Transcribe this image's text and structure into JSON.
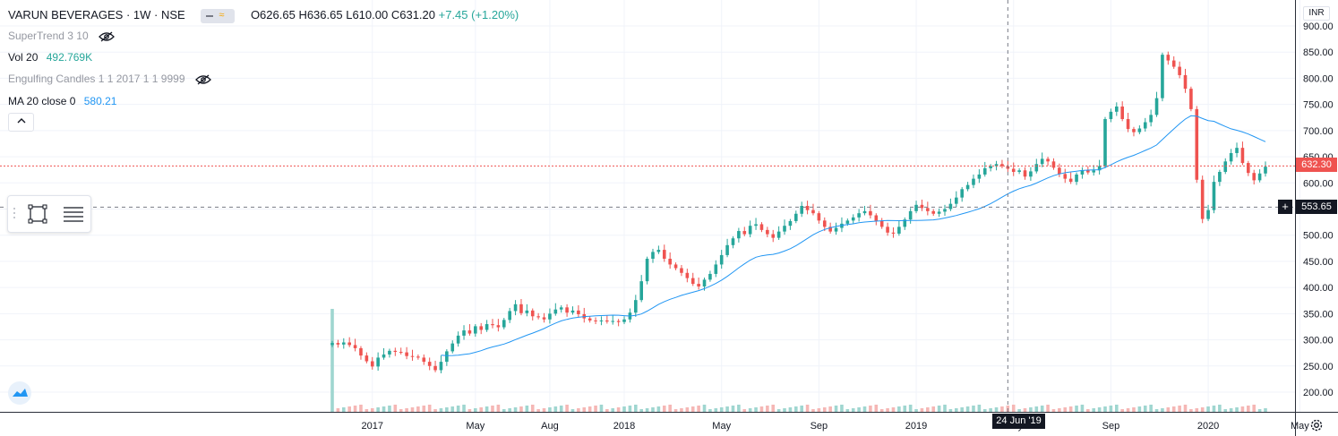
{
  "header": {
    "symbol": "VARUN BEVERAGES · 1W · NSE",
    "open": "O626.65",
    "high": "H636.65",
    "low": "L610.00",
    "close": "C631.20",
    "change": "+7.45 (+1.20%)"
  },
  "indicators": {
    "supertrend": "SuperTrend 3 10",
    "volume_label": "Vol 20",
    "volume_value": "492.769K",
    "engulfing": "Engulfing Candles 1 1 2017 1 1 9999",
    "ma_label": "MA 20 close 0",
    "ma_value": "580.21"
  },
  "price_axis": {
    "currency": "INR",
    "last_price_label": "632.30",
    "crosshair_price_label": "553.65"
  },
  "crosshair": {
    "date_label": "24 Jun '19"
  },
  "colors": {
    "up": "#26a69a",
    "down": "#ef5350",
    "ma": "#2196f3",
    "grid": "#f0f3fa",
    "volume_up": "#9fd6d0",
    "volume_down": "#f5b7b5"
  },
  "icons": {
    "collapse": "chevron-up-icon",
    "settings": "gear-icon",
    "logo": "tradingview-logo-icon"
  },
  "chart_data": {
    "type": "candlestick",
    "title": "VARUN BEVERAGES · 1W · NSE",
    "xlabel": "",
    "ylabel": "",
    "ylim": [
      160,
      910
    ],
    "grid": true,
    "y_ticks": [
      "200.00",
      "250.00",
      "300.00",
      "350.00",
      "400.00",
      "450.00",
      "500.00",
      "550.00",
      "600.00",
      "650.00",
      "700.00",
      "750.00",
      "800.00",
      "850.00",
      "900.00"
    ],
    "x_ticks": [
      "2017",
      "May",
      "Aug",
      "2018",
      "May",
      "Sep",
      "2019",
      "May",
      "Sep",
      "2020",
      "May"
    ],
    "closes": [
      294,
      291,
      295,
      290,
      284,
      270,
      259,
      249,
      266,
      272,
      279,
      277,
      276,
      269,
      268,
      266,
      258,
      250,
      242,
      258,
      278,
      293,
      308,
      318,
      312,
      326,
      319,
      330,
      328,
      324,
      338,
      355,
      368,
      351,
      356,
      345,
      343,
      339,
      350,
      358,
      362,
      352,
      356,
      349,
      341,
      337,
      336,
      337,
      335,
      336,
      334,
      339,
      352,
      376,
      412,
      455,
      468,
      472,
      455,
      444,
      437,
      428,
      418,
      407,
      402,
      415,
      426,
      444,
      462,
      481,
      494,
      508,
      502,
      518,
      521,
      510,
      502,
      495,
      507,
      518,
      527,
      541,
      556,
      548,
      542,
      528,
      516,
      507,
      514,
      522,
      528,
      534,
      542,
      546,
      538,
      527,
      516,
      505,
      503,
      516,
      530,
      546,
      558,
      552,
      546,
      541,
      545,
      550,
      560,
      572,
      588,
      596,
      608,
      616,
      628,
      632,
      636,
      632,
      627,
      621,
      624,
      612,
      622,
      636,
      646,
      641,
      629,
      617,
      608,
      602,
      616,
      624,
      620,
      624,
      632,
      722,
      736,
      746,
      722,
      703,
      697,
      704,
      716,
      730,
      762,
      845,
      834,
      822,
      806,
      780,
      741,
      606,
      531,
      548,
      602,
      621,
      641,
      657,
      667,
      638,
      619,
      605,
      618,
      631
    ]
  }
}
